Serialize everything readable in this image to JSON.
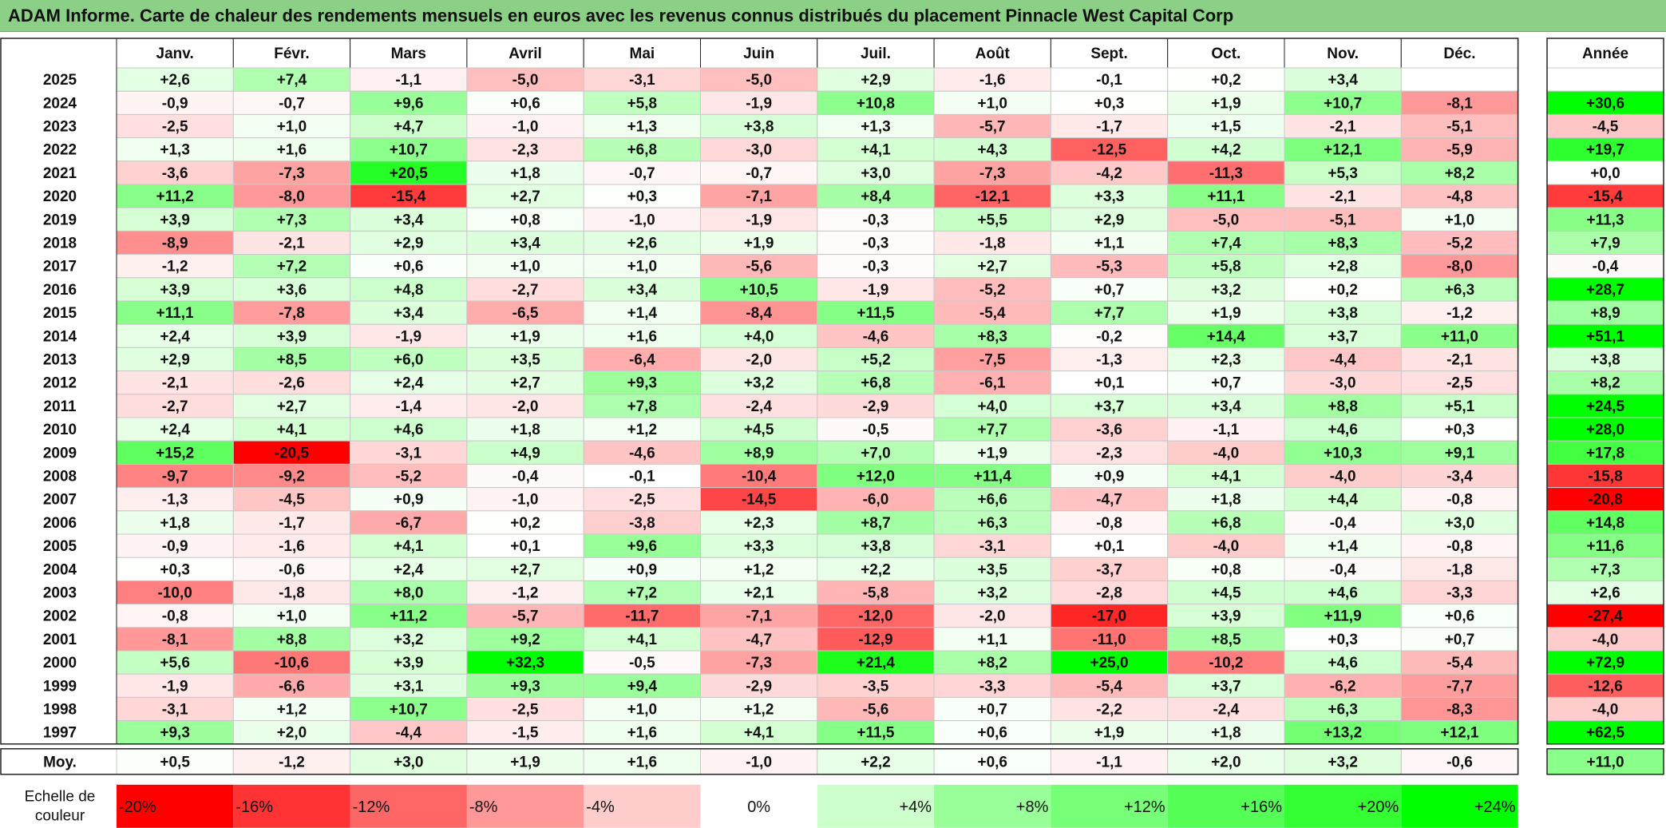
{
  "title": "ADAM Informe. Carte de chaleur des rendements mensuels en euros avec les revenus connus distribués du placement Pinnacle West Capital Corp",
  "chart_data": {
    "type": "heatmap",
    "months": [
      "Janv.",
      "Févr.",
      "Mars",
      "Avril",
      "Mai",
      "Juin",
      "Juil.",
      "Août",
      "Sept.",
      "Oct.",
      "Nov.",
      "Déc."
    ],
    "year_header": "Année",
    "rows": [
      {
        "year": "2025",
        "months": [
          "+2,6",
          "+7,4",
          "-1,1",
          "-5,0",
          "-3,1",
          "-5,0",
          "+2,9",
          "-1,6",
          "-0,1",
          "+0,2",
          "+3,4",
          ""
        ],
        "annual": ""
      },
      {
        "year": "2024",
        "months": [
          "-0,9",
          "-0,7",
          "+9,6",
          "+0,6",
          "+5,8",
          "-1,9",
          "+10,8",
          "+1,0",
          "+0,3",
          "+1,9",
          "+10,7",
          "-8,1"
        ],
        "annual": "+30,6"
      },
      {
        "year": "2023",
        "months": [
          "-2,5",
          "+1,0",
          "+4,7",
          "-1,0",
          "+1,3",
          "+3,8",
          "+1,3",
          "-5,7",
          "-1,7",
          "+1,5",
          "-2,1",
          "-5,1"
        ],
        "annual": "-4,5"
      },
      {
        "year": "2022",
        "months": [
          "+1,3",
          "+1,6",
          "+10,7",
          "-2,3",
          "+6,8",
          "-3,0",
          "+4,1",
          "+4,3",
          "-12,5",
          "+4,2",
          "+12,1",
          "-5,9"
        ],
        "annual": "+19,7"
      },
      {
        "year": "2021",
        "months": [
          "-3,6",
          "-7,3",
          "+20,5",
          "+1,8",
          "-0,7",
          "-0,7",
          "+3,0",
          "-7,3",
          "-4,2",
          "-11,3",
          "+5,3",
          "+8,2"
        ],
        "annual": "+0,0"
      },
      {
        "year": "2020",
        "months": [
          "+11,2",
          "-8,0",
          "-15,4",
          "+2,7",
          "+0,3",
          "-7,1",
          "+8,4",
          "-12,1",
          "+3,3",
          "+11,1",
          "-2,1",
          "-4,8"
        ],
        "annual": "-15,4"
      },
      {
        "year": "2019",
        "months": [
          "+3,9",
          "+7,3",
          "+3,4",
          "+0,8",
          "-1,0",
          "-1,9",
          "-0,3",
          "+5,5",
          "+2,9",
          "-5,0",
          "-5,1",
          "+1,0"
        ],
        "annual": "+11,3"
      },
      {
        "year": "2018",
        "months": [
          "-8,9",
          "-2,1",
          "+2,9",
          "+3,4",
          "+2,6",
          "+1,9",
          "-0,3",
          "-1,8",
          "+1,1",
          "+7,4",
          "+8,3",
          "-5,2"
        ],
        "annual": "+7,9"
      },
      {
        "year": "2017",
        "months": [
          "-1,2",
          "+7,2",
          "+0,6",
          "+1,0",
          "+1,0",
          "-5,6",
          "-0,3",
          "+2,7",
          "-5,3",
          "+5,8",
          "+2,8",
          "-8,0"
        ],
        "annual": "-0,4"
      },
      {
        "year": "2016",
        "months": [
          "+3,9",
          "+3,6",
          "+4,8",
          "-2,7",
          "+3,4",
          "+10,5",
          "-1,9",
          "-5,2",
          "+0,7",
          "+3,2",
          "+0,2",
          "+6,3"
        ],
        "annual": "+28,7"
      },
      {
        "year": "2015",
        "months": [
          "+11,1",
          "-7,8",
          "+3,4",
          "-6,5",
          "+1,4",
          "-8,4",
          "+11,5",
          "-5,4",
          "+7,7",
          "+1,9",
          "+3,8",
          "-1,2"
        ],
        "annual": "+8,9"
      },
      {
        "year": "2014",
        "months": [
          "+2,4",
          "+3,9",
          "-1,9",
          "+1,9",
          "+1,6",
          "+4,0",
          "-4,6",
          "+8,3",
          "-0,2",
          "+14,4",
          "+3,7",
          "+11,0"
        ],
        "annual": "+51,1"
      },
      {
        "year": "2013",
        "months": [
          "+2,9",
          "+8,5",
          "+6,0",
          "+3,5",
          "-6,4",
          "-2,0",
          "+5,2",
          "-7,5",
          "-1,3",
          "+2,3",
          "-4,4",
          "-2,1"
        ],
        "annual": "+3,8"
      },
      {
        "year": "2012",
        "months": [
          "-2,1",
          "-2,6",
          "+2,4",
          "+2,7",
          "+9,3",
          "+3,2",
          "+6,8",
          "-6,1",
          "+0,1",
          "+0,7",
          "-3,0",
          "-2,5"
        ],
        "annual": "+8,2"
      },
      {
        "year": "2011",
        "months": [
          "-2,7",
          "+2,7",
          "-1,4",
          "-2,0",
          "+7,8",
          "-2,4",
          "-2,9",
          "+4,0",
          "+3,7",
          "+3,4",
          "+8,8",
          "+5,1"
        ],
        "annual": "+24,5"
      },
      {
        "year": "2010",
        "months": [
          "+2,4",
          "+4,1",
          "+4,6",
          "+1,8",
          "+1,2",
          "+4,5",
          "-0,5",
          "+7,7",
          "-3,6",
          "-1,1",
          "+4,6",
          "+0,3"
        ],
        "annual": "+28,0"
      },
      {
        "year": "2009",
        "months": [
          "+15,2",
          "-20,5",
          "-3,1",
          "+4,9",
          "-4,6",
          "+8,9",
          "+7,0",
          "+1,9",
          "-2,3",
          "-4,0",
          "+10,3",
          "+9,1"
        ],
        "annual": "+17,8"
      },
      {
        "year": "2008",
        "months": [
          "-9,7",
          "-9,2",
          "-5,2",
          "-0,4",
          "-0,1",
          "-10,4",
          "+12,0",
          "+11,4",
          "+0,9",
          "+4,1",
          "-4,0",
          "-3,4"
        ],
        "annual": "-15,8"
      },
      {
        "year": "2007",
        "months": [
          "-1,3",
          "-4,5",
          "+0,9",
          "-1,0",
          "-2,5",
          "-14,5",
          "-6,0",
          "+6,6",
          "-4,7",
          "+1,8",
          "+4,4",
          "-0,8"
        ],
        "annual": "-20,8"
      },
      {
        "year": "2006",
        "months": [
          "+1,8",
          "-1,7",
          "-6,7",
          "+0,2",
          "-3,8",
          "+2,3",
          "+8,7",
          "+6,3",
          "-0,8",
          "+6,8",
          "-0,4",
          "+3,0"
        ],
        "annual": "+14,8"
      },
      {
        "year": "2005",
        "months": [
          "-0,9",
          "-1,6",
          "+4,1",
          "+0,1",
          "+9,6",
          "+3,3",
          "+3,8",
          "-3,1",
          "+0,1",
          "-4,0",
          "+1,4",
          "-0,8"
        ],
        "annual": "+11,6"
      },
      {
        "year": "2004",
        "months": [
          "+0,3",
          "-0,6",
          "+2,4",
          "+2,7",
          "+0,9",
          "+1,2",
          "+2,2",
          "+3,5",
          "-3,7",
          "+0,8",
          "-0,4",
          "-1,8"
        ],
        "annual": "+7,3"
      },
      {
        "year": "2003",
        "months": [
          "-10,0",
          "-1,8",
          "+8,0",
          "-1,2",
          "+7,2",
          "+2,1",
          "-5,8",
          "+3,2",
          "-2,8",
          "+4,5",
          "+4,6",
          "-3,3"
        ],
        "annual": "+2,6"
      },
      {
        "year": "2002",
        "months": [
          "-0,8",
          "+1,0",
          "+11,2",
          "-5,7",
          "-11,7",
          "-7,1",
          "-12,0",
          "-2,0",
          "-17,0",
          "+3,9",
          "+11,9",
          "+0,6"
        ],
        "annual": "-27,4"
      },
      {
        "year": "2001",
        "months": [
          "-8,1",
          "+8,8",
          "+3,2",
          "+9,2",
          "+4,1",
          "-4,7",
          "-12,9",
          "+1,1",
          "-11,0",
          "+8,5",
          "+0,3",
          "+0,7"
        ],
        "annual": "-4,0"
      },
      {
        "year": "2000",
        "months": [
          "+5,6",
          "-10,6",
          "+3,9",
          "+32,3",
          "-0,5",
          "-7,3",
          "+21,4",
          "+8,2",
          "+25,0",
          "-10,2",
          "+4,6",
          "-5,4"
        ],
        "annual": "+72,9"
      },
      {
        "year": "1999",
        "months": [
          "-1,9",
          "-6,6",
          "+3,1",
          "+9,3",
          "+9,4",
          "-2,9",
          "-3,5",
          "-3,3",
          "-5,4",
          "+3,7",
          "-6,2",
          "-7,7"
        ],
        "annual": "-12,6"
      },
      {
        "year": "1998",
        "months": [
          "-3,1",
          "+1,2",
          "+10,7",
          "-2,5",
          "+1,0",
          "+1,2",
          "-5,6",
          "+0,7",
          "-2,2",
          "-2,4",
          "+6,3",
          "-8,3"
        ],
        "annual": "-4,0"
      },
      {
        "year": "1997",
        "months": [
          "+9,3",
          "+2,0",
          "-4,4",
          "-1,5",
          "+1,6",
          "+4,1",
          "+11,5",
          "+0,6",
          "+1,9",
          "+1,8",
          "+13,2",
          "+12,1"
        ],
        "annual": "+62,5"
      }
    ],
    "average": {
      "label": "Moy.",
      "months": [
        "+0,5",
        "-1,2",
        "+3,0",
        "+1,9",
        "+1,6",
        "-1,0",
        "+2,2",
        "+0,6",
        "-1,1",
        "+2,0",
        "+3,2",
        "-0,6"
      ],
      "annual": "+11,0"
    },
    "scale": {
      "label_line1": "Echelle de",
      "label_line2": "couleur",
      "stops": [
        {
          "label": "-20%",
          "value": -20,
          "color": "#ff0000"
        },
        {
          "label": "-16%",
          "value": -16,
          "color": "#ff3333"
        },
        {
          "label": "-12%",
          "value": -12,
          "color": "#ff6666"
        },
        {
          "label": "-8%",
          "value": -8,
          "color": "#ff9999"
        },
        {
          "label": "-4%",
          "value": -4,
          "color": "#ffcccc"
        },
        {
          "label": "0%",
          "value": 0,
          "color": "#ffffff"
        },
        {
          "label": "+4%",
          "value": 4,
          "color": "#ccffcc"
        },
        {
          "label": "+8%",
          "value": 8,
          "color": "#99ff99"
        },
        {
          "label": "+12%",
          "value": 12,
          "color": "#77ff77"
        },
        {
          "label": "+16%",
          "value": 16,
          "color": "#55ff55"
        },
        {
          "label": "+20%",
          "value": 20,
          "color": "#33ff33"
        },
        {
          "label": "+24%",
          "value": 24,
          "color": "#00ff00"
        }
      ]
    },
    "colors": {
      "title_bar": "#8ccf86",
      "negative_max": "#ff0000",
      "neutral": "#ffffff",
      "positive_max": "#00ff00"
    }
  }
}
